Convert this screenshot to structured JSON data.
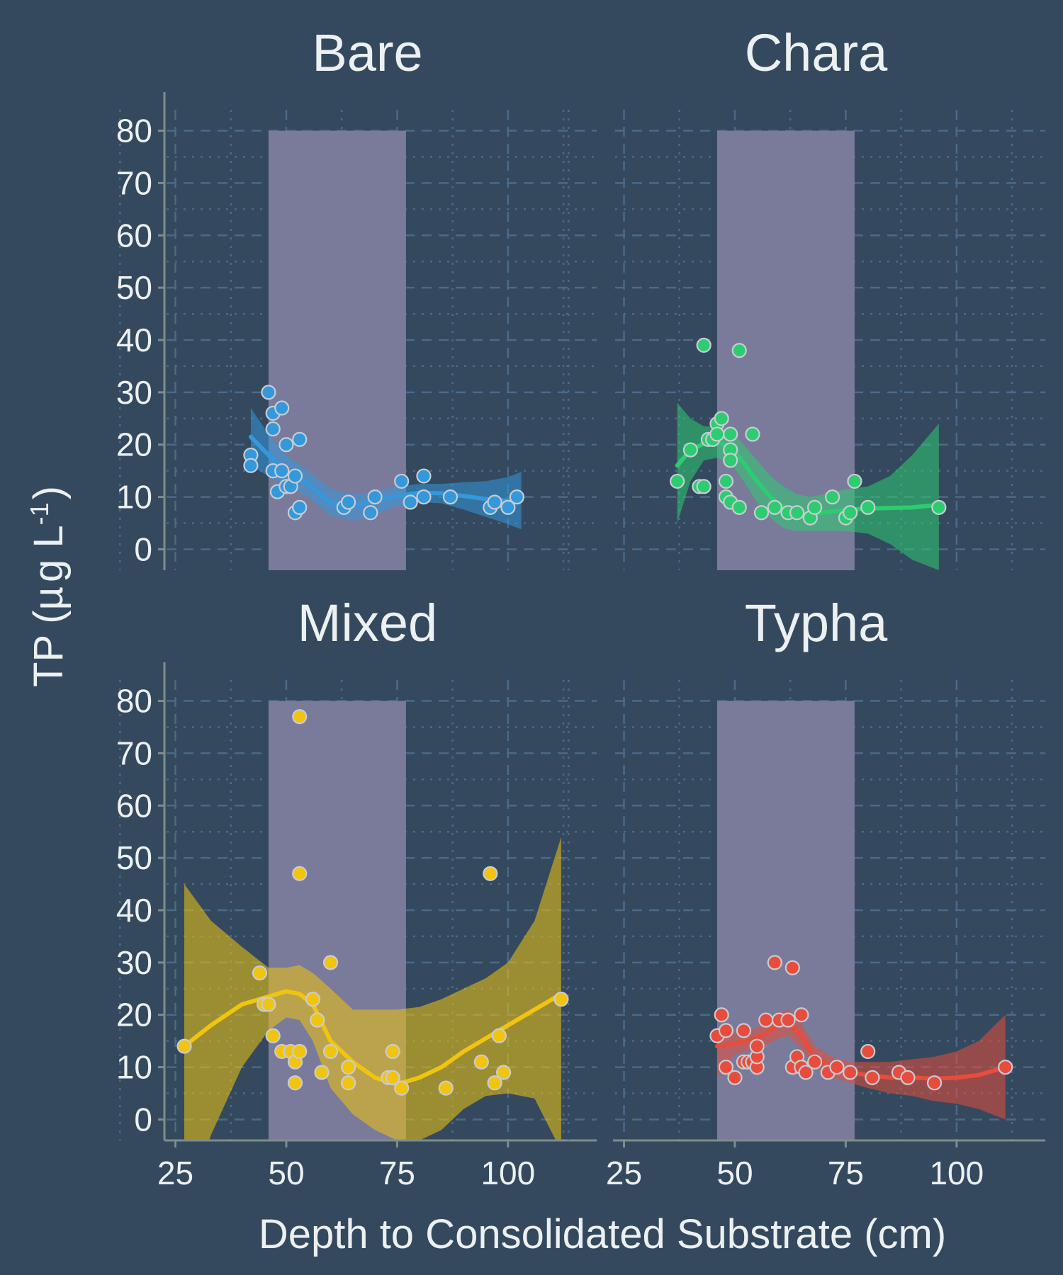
{
  "chart_data": {
    "type": "scatter",
    "title": "",
    "xlabel": "Depth to Consolidated Substrate (cm)",
    "ylabel_main": "TP (",
    "ylabel_mu": "µ",
    "ylabel_g": "g L",
    "ylabel_sup": "-1",
    "ylabel_close": ")",
    "xlim": [
      23,
      120
    ],
    "ylim": [
      -4,
      84
    ],
    "x_ticks": [
      25,
      50,
      75,
      100
    ],
    "y_ticks": [
      0,
      10,
      20,
      30,
      40,
      50,
      60,
      70,
      80
    ],
    "shaded_band": [
      46,
      77
    ],
    "grid": true,
    "panels": [
      {
        "name": "Bare",
        "color": "#3498db",
        "points": [
          [
            42,
            18
          ],
          [
            42,
            16
          ],
          [
            46,
            30
          ],
          [
            47,
            26
          ],
          [
            47,
            23
          ],
          [
            47,
            15
          ],
          [
            48,
            11
          ],
          [
            49,
            27
          ],
          [
            49,
            15
          ],
          [
            50,
            20
          ],
          [
            50,
            12
          ],
          [
            51,
            12
          ],
          [
            52,
            14
          ],
          [
            52,
            7
          ],
          [
            53,
            21
          ],
          [
            53,
            8
          ],
          [
            63,
            8
          ],
          [
            64,
            9
          ],
          [
            69,
            7
          ],
          [
            70,
            10
          ],
          [
            76,
            13
          ],
          [
            78,
            9
          ],
          [
            81,
            14
          ],
          [
            81,
            10
          ],
          [
            87,
            10
          ],
          [
            96,
            8
          ],
          [
            97,
            9
          ],
          [
            100,
            8
          ],
          [
            102,
            10
          ]
        ],
        "smooth": [
          [
            42,
            21.5
          ],
          [
            46,
            18
          ],
          [
            50,
            15
          ],
          [
            55,
            12.5
          ],
          [
            60,
            8.8
          ],
          [
            65,
            8.2
          ],
          [
            70,
            9.3
          ],
          [
            75,
            10.2
          ],
          [
            80,
            10.8
          ],
          [
            85,
            10.7
          ],
          [
            90,
            10.2
          ],
          [
            95,
            9.6
          ],
          [
            100,
            9.3
          ],
          [
            103,
            9.3
          ]
        ],
        "ci_upper": [
          [
            42,
            27
          ],
          [
            46,
            22
          ],
          [
            50,
            18
          ],
          [
            55,
            15
          ],
          [
            60,
            11.5
          ],
          [
            65,
            10.5
          ],
          [
            70,
            11
          ],
          [
            75,
            12
          ],
          [
            80,
            12.5
          ],
          [
            85,
            12.5
          ],
          [
            90,
            12.8
          ],
          [
            95,
            13
          ],
          [
            100,
            13.8
          ],
          [
            103,
            14.8
          ]
        ],
        "ci_lower": [
          [
            42,
            16
          ],
          [
            46,
            14
          ],
          [
            50,
            12
          ],
          [
            55,
            10
          ],
          [
            60,
            6.5
          ],
          [
            65,
            5.5
          ],
          [
            70,
            6.5
          ],
          [
            75,
            8.3
          ],
          [
            80,
            9
          ],
          [
            85,
            8.8
          ],
          [
            90,
            7.6
          ],
          [
            95,
            6.2
          ],
          [
            100,
            4.8
          ],
          [
            103,
            3.8
          ]
        ]
      },
      {
        "name": "Chara",
        "color": "#2ecc71",
        "points": [
          [
            37,
            13
          ],
          [
            40,
            19
          ],
          [
            42,
            12
          ],
          [
            43,
            39
          ],
          [
            43,
            12
          ],
          [
            44,
            21
          ],
          [
            45,
            21
          ],
          [
            46,
            24
          ],
          [
            46,
            22
          ],
          [
            47,
            25
          ],
          [
            48,
            13
          ],
          [
            48,
            10
          ],
          [
            49,
            22
          ],
          [
            49,
            19
          ],
          [
            49,
            17
          ],
          [
            49,
            9
          ],
          [
            51,
            38
          ],
          [
            51,
            8
          ],
          [
            54,
            22
          ],
          [
            56,
            7
          ],
          [
            59,
            8
          ],
          [
            62,
            7
          ],
          [
            64,
            7
          ],
          [
            67,
            6
          ],
          [
            68,
            8
          ],
          [
            72,
            10
          ],
          [
            75,
            6
          ],
          [
            76,
            7
          ],
          [
            77,
            13
          ],
          [
            80,
            8
          ],
          [
            96,
            8
          ]
        ],
        "smooth": [
          [
            37,
            16
          ],
          [
            40,
            19
          ],
          [
            43,
            20.2
          ],
          [
            46,
            20.5
          ],
          [
            49,
            19.5
          ],
          [
            52,
            16.5
          ],
          [
            55,
            13
          ],
          [
            58,
            10
          ],
          [
            61,
            8
          ],
          [
            64,
            7
          ],
          [
            67,
            6.7
          ],
          [
            70,
            7
          ],
          [
            75,
            7.5
          ],
          [
            80,
            7.8
          ],
          [
            85,
            7.9
          ],
          [
            90,
            8
          ],
          [
            96,
            8.5
          ]
        ],
        "ci_upper": [
          [
            37,
            28
          ],
          [
            40,
            25
          ],
          [
            43,
            23.5
          ],
          [
            46,
            23.5
          ],
          [
            49,
            22.5
          ],
          [
            52,
            20
          ],
          [
            55,
            17
          ],
          [
            58,
            14
          ],
          [
            61,
            12
          ],
          [
            64,
            10.5
          ],
          [
            67,
            10
          ],
          [
            70,
            10.5
          ],
          [
            75,
            11.5
          ],
          [
            80,
            12
          ],
          [
            85,
            14
          ],
          [
            90,
            18
          ],
          [
            96,
            24
          ]
        ],
        "ci_lower": [
          [
            37,
            5
          ],
          [
            40,
            13
          ],
          [
            43,
            17
          ],
          [
            46,
            17.5
          ],
          [
            49,
            16.5
          ],
          [
            52,
            13
          ],
          [
            55,
            9
          ],
          [
            58,
            6
          ],
          [
            61,
            4
          ],
          [
            64,
            3.5
          ],
          [
            67,
            3.5
          ],
          [
            70,
            3.5
          ],
          [
            75,
            3.5
          ],
          [
            80,
            3
          ],
          [
            85,
            1
          ],
          [
            90,
            -2
          ],
          [
            96,
            -4
          ]
        ]
      },
      {
        "name": "Mixed",
        "color": "#f1c40f",
        "points": [
          [
            27,
            14
          ],
          [
            44,
            28
          ],
          [
            45,
            22
          ],
          [
            46,
            22
          ],
          [
            47,
            16
          ],
          [
            49,
            13
          ],
          [
            51,
            13
          ],
          [
            52,
            11
          ],
          [
            52,
            7
          ],
          [
            53,
            77
          ],
          [
            53,
            47
          ],
          [
            53,
            13
          ],
          [
            56,
            23
          ],
          [
            57,
            19
          ],
          [
            58,
            9
          ],
          [
            60,
            30
          ],
          [
            60,
            13
          ],
          [
            64,
            10
          ],
          [
            64,
            7
          ],
          [
            73,
            8
          ],
          [
            74,
            13
          ],
          [
            74,
            8
          ],
          [
            76,
            6
          ],
          [
            86,
            6
          ],
          [
            94,
            11
          ],
          [
            96,
            47
          ],
          [
            97,
            7
          ],
          [
            98,
            16
          ],
          [
            99,
            9
          ],
          [
            112,
            23
          ]
        ],
        "smooth": [
          [
            27,
            14
          ],
          [
            33,
            18
          ],
          [
            40,
            22
          ],
          [
            46,
            23.5
          ],
          [
            50,
            24.5
          ],
          [
            53,
            24
          ],
          [
            56,
            22
          ],
          [
            60,
            15
          ],
          [
            65,
            11
          ],
          [
            70,
            8
          ],
          [
            75,
            6.7
          ],
          [
            80,
            8
          ],
          [
            85,
            10
          ],
          [
            90,
            13
          ],
          [
            95,
            15.5
          ],
          [
            100,
            18
          ],
          [
            106,
            21
          ],
          [
            112,
            24
          ]
        ],
        "ci_upper": [
          [
            27,
            45
          ],
          [
            33,
            38
          ],
          [
            40,
            33
          ],
          [
            46,
            29
          ],
          [
            50,
            29
          ],
          [
            53,
            29.5
          ],
          [
            56,
            28
          ],
          [
            60,
            25
          ],
          [
            65,
            21
          ],
          [
            70,
            21
          ],
          [
            75,
            21
          ],
          [
            80,
            21.5
          ],
          [
            85,
            23
          ],
          [
            90,
            25
          ],
          [
            95,
            27
          ],
          [
            100,
            30
          ],
          [
            106,
            38
          ],
          [
            112,
            54
          ]
        ],
        "ci_lower": [
          [
            27,
            -20
          ],
          [
            33,
            -3
          ],
          [
            40,
            10
          ],
          [
            46,
            17
          ],
          [
            50,
            19.5
          ],
          [
            53,
            19
          ],
          [
            56,
            15
          ],
          [
            60,
            6
          ],
          [
            65,
            1
          ],
          [
            70,
            -2
          ],
          [
            75,
            -4
          ],
          [
            80,
            -4
          ],
          [
            85,
            -2
          ],
          [
            90,
            2
          ],
          [
            95,
            4.5
          ],
          [
            100,
            5
          ],
          [
            106,
            4
          ],
          [
            112,
            -6
          ]
        ]
      },
      {
        "name": "Typha",
        "color": "#e74c3c",
        "points": [
          [
            46,
            16
          ],
          [
            47,
            20
          ],
          [
            48,
            17
          ],
          [
            48,
            10
          ],
          [
            50,
            8
          ],
          [
            52,
            11
          ],
          [
            52,
            17
          ],
          [
            53,
            11
          ],
          [
            54,
            11
          ],
          [
            55,
            10
          ],
          [
            55,
            12
          ],
          [
            55,
            14
          ],
          [
            57,
            19
          ],
          [
            59,
            30
          ],
          [
            60,
            19
          ],
          [
            62,
            19
          ],
          [
            63,
            29
          ],
          [
            63,
            10
          ],
          [
            64,
            12
          ],
          [
            65,
            20
          ],
          [
            65,
            10
          ],
          [
            66,
            9
          ],
          [
            68,
            11
          ],
          [
            71,
            9
          ],
          [
            73,
            10
          ],
          [
            76,
            9
          ],
          [
            80,
            13
          ],
          [
            81,
            8
          ],
          [
            87,
            9
          ],
          [
            89,
            8
          ],
          [
            95,
            7
          ],
          [
            111,
            10
          ]
        ],
        "smooth": [
          [
            46,
            14
          ],
          [
            50,
            14.5
          ],
          [
            55,
            15.5
          ],
          [
            60,
            18
          ],
          [
            62,
            18.5
          ],
          [
            65,
            16
          ],
          [
            68,
            12
          ],
          [
            72,
            10
          ],
          [
            76,
            9
          ],
          [
            80,
            8.5
          ],
          [
            85,
            8
          ],
          [
            90,
            8
          ],
          [
            95,
            7.8
          ],
          [
            100,
            8
          ],
          [
            105,
            8.5
          ],
          [
            111,
            10
          ]
        ],
        "ci_upper": [
          [
            46,
            16
          ],
          [
            50,
            16.5
          ],
          [
            55,
            17.5
          ],
          [
            60,
            20.3
          ],
          [
            62,
            21
          ],
          [
            65,
            18.5
          ],
          [
            68,
            14
          ],
          [
            72,
            12
          ],
          [
            76,
            11
          ],
          [
            80,
            11
          ],
          [
            85,
            11
          ],
          [
            90,
            11.5
          ],
          [
            95,
            12
          ],
          [
            100,
            13
          ],
          [
            105,
            15
          ],
          [
            111,
            20
          ]
        ],
        "ci_lower": [
          [
            46,
            8
          ],
          [
            50,
            12.5
          ],
          [
            55,
            13.5
          ],
          [
            60,
            15.5
          ],
          [
            62,
            16
          ],
          [
            65,
            13.5
          ],
          [
            68,
            10
          ],
          [
            72,
            8
          ],
          [
            76,
            7
          ],
          [
            80,
            6
          ],
          [
            85,
            5
          ],
          [
            90,
            4.5
          ],
          [
            95,
            3.5
          ],
          [
            100,
            3
          ],
          [
            105,
            2
          ],
          [
            111,
            0
          ]
        ]
      }
    ]
  }
}
